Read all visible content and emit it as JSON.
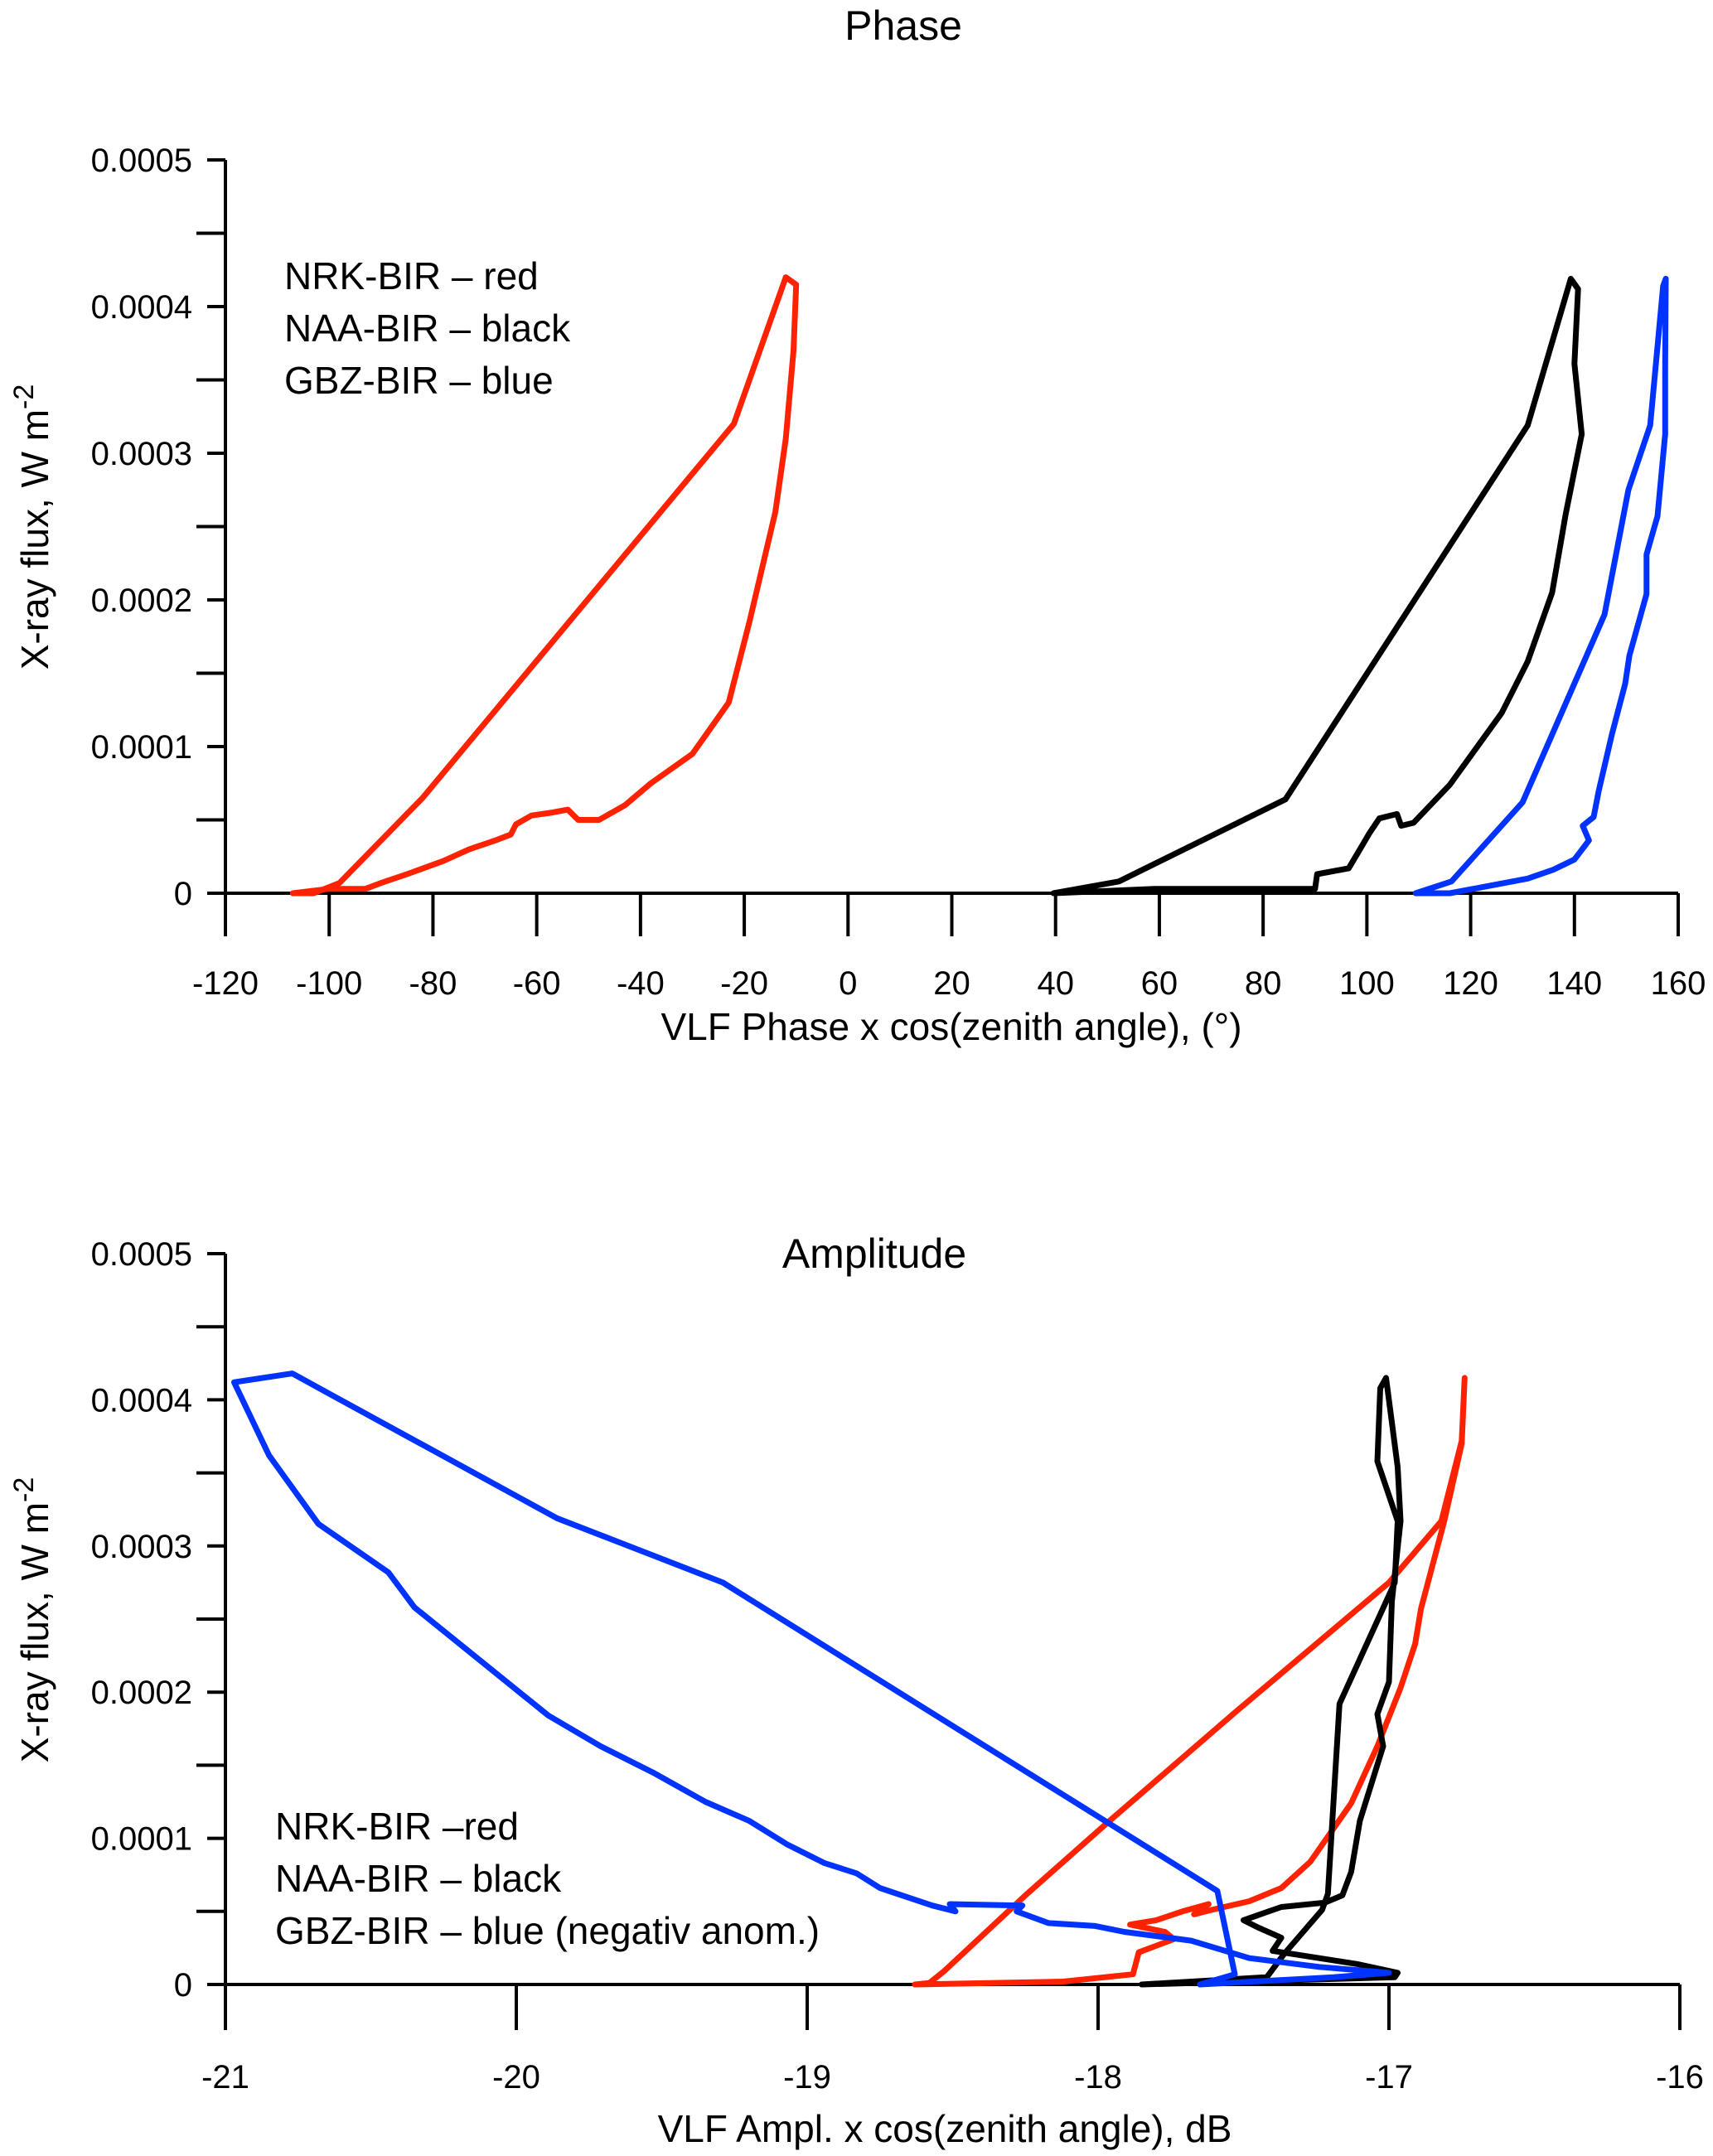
{
  "chart_data": [
    {
      "type": "line",
      "title": "Phase",
      "xlabel": "VLF Phase x cos(zenith angle), (°)",
      "ylabel": "X-ray flux, W m",
      "ylabel_superscript": "-2",
      "xlim": [
        -120,
        160
      ],
      "ylim": [
        0,
        0.0005
      ],
      "x_ticks": [
        -120,
        -100,
        -80,
        -60,
        -40,
        -20,
        0,
        20,
        40,
        60,
        80,
        100,
        120,
        140,
        160
      ],
      "x_tick_labels": [
        "-120",
        "-100",
        "-80",
        "-60",
        "-40",
        "-20",
        "0",
        "20",
        "40",
        "60",
        "80",
        "100",
        "120",
        "140",
        "160"
      ],
      "y_ticks": [
        0,
        0.0001,
        0.0002,
        0.0003,
        0.0004,
        0.0005
      ],
      "y_tick_labels": [
        "0",
        "0.0001",
        "0.0002",
        "0.0003",
        "0.0004",
        "0.0005"
      ],
      "y_minor_step": 5e-05,
      "grid": false,
      "legend_position": "top-left",
      "legend": [
        "NRK-BIR – red",
        "NAA-BIR – black",
        "GBZ-BIR – blue"
      ],
      "series": [
        {
          "name": "NRK-BIR",
          "color": "#ff2200",
          "points": [
            [
              -107,
              0
            ],
            [
              -103,
              0
            ],
            [
              -98,
              7e-06
            ],
            [
              -82,
              6.5e-05
            ],
            [
              -22,
              0.00032
            ],
            [
              -12,
              0.00042
            ],
            [
              -10,
              0.000415
            ],
            [
              -10.5,
              0.00037
            ],
            [
              -12,
              0.00031
            ],
            [
              -14,
              0.00026
            ],
            [
              -19,
              0.000185
            ],
            [
              -23,
              0.00013
            ],
            [
              -30,
              9.5e-05
            ],
            [
              -38,
              7.5e-05
            ],
            [
              -43,
              6e-05
            ],
            [
              -48,
              5e-05
            ],
            [
              -52,
              5e-05
            ],
            [
              -54,
              5.7e-05
            ],
            [
              -57,
              5.5e-05
            ],
            [
              -61,
              5.3e-05
            ],
            [
              -64,
              4.7e-05
            ],
            [
              -65,
              4e-05
            ],
            [
              -68,
              3.6e-05
            ],
            [
              -73,
              3e-05
            ],
            [
              -78,
              2.2e-05
            ],
            [
              -85,
              1.3e-05
            ],
            [
              -90,
              7e-06
            ],
            [
              -93,
              3e-06
            ],
            [
              -100,
              3e-06
            ],
            [
              -107,
              0
            ]
          ]
        },
        {
          "name": "NAA-BIR",
          "color": "#000000",
          "points": [
            [
              39.6,
              0
            ],
            [
              52.2,
              8e-06
            ],
            [
              84.3,
              6.4e-05
            ],
            [
              131,
              0.000319
            ],
            [
              139.3,
              0.000419
            ],
            [
              140.7,
              0.000412
            ],
            [
              140,
              0.000361
            ],
            [
              141.4,
              0.000313
            ],
            [
              138.3,
              0.000258
            ],
            [
              135.7,
              0.000205
            ],
            [
              131,
              0.000158
            ],
            [
              126,
              0.000123
            ],
            [
              116,
              7.4e-05
            ],
            [
              109,
              4.8e-05
            ],
            [
              106.6,
              4.6e-05
            ],
            [
              105.8,
              5.4e-05
            ],
            [
              102.4,
              5.1e-05
            ],
            [
              100.5,
              4.1e-05
            ],
            [
              98.5,
              2.9e-05
            ],
            [
              96.5,
              1.7e-05
            ],
            [
              90.4,
              1.3e-05
            ],
            [
              90,
              3e-06
            ],
            [
              59.1,
              3e-06
            ],
            [
              39.6,
              0
            ]
          ]
        },
        {
          "name": "GBZ-BIR",
          "color": "#0033ff",
          "points": [
            [
              109.4,
              0
            ],
            [
              116.3,
              8e-06
            ],
            [
              130,
              6.2e-05
            ],
            [
              145.8,
              0.00019
            ],
            [
              150.4,
              0.000275
            ],
            [
              154.6,
              0.000319
            ],
            [
              157.1,
              0.000414
            ],
            [
              157.6,
              0.000419
            ],
            [
              157.5,
              0.000361
            ],
            [
              157.5,
              0.000313
            ],
            [
              156,
              0.000257
            ],
            [
              153.9,
              0.000231
            ],
            [
              153.9,
              0.000204
            ],
            [
              150.6,
              0.000162
            ],
            [
              149.8,
              0.000143
            ],
            [
              147.2,
              0.000108
            ],
            [
              144.7,
              7e-05
            ],
            [
              143.7,
              5.2e-05
            ],
            [
              141.6,
              4.6e-05
            ],
            [
              142.8,
              3.6e-05
            ],
            [
              140,
              2.3e-05
            ],
            [
              135.9,
              1.6e-05
            ],
            [
              131,
              1e-05
            ],
            [
              123.5,
              5e-06
            ],
            [
              116,
              0
            ],
            [
              109.4,
              0
            ]
          ]
        }
      ]
    },
    {
      "type": "line",
      "title": "Amplitude",
      "xlabel": "VLF Ampl. x cos(zenith angle), dB",
      "ylabel": "X-ray flux, W m",
      "ylabel_superscript": "-2",
      "xlim": [
        -21,
        -16
      ],
      "ylim": [
        0,
        0.0005
      ],
      "x_ticks": [
        -21,
        -20,
        -19,
        -18,
        -17,
        -16
      ],
      "x_tick_labels": [
        "-21",
        "-20",
        "-19",
        "-18",
        "-17",
        "-16"
      ],
      "y_ticks": [
        0,
        0.0001,
        0.0002,
        0.0003,
        0.0004,
        0.0005
      ],
      "y_tick_labels": [
        "0",
        "0.0001",
        "0.0002",
        "0.0003",
        "0.0004",
        "0.0005"
      ],
      "y_minor_step": 5e-05,
      "grid": false,
      "legend_position": "bottom-left",
      "legend": [
        "NRK-BIR –red",
        "NAA-BIR – black",
        "GBZ-BIR – blue (negativ anom.)"
      ],
      "series": [
        {
          "name": "NRK-BIR",
          "color": "#ff2200",
          "points": [
            [
              -18.63,
              0
            ],
            [
              -18.58,
              1e-06
            ],
            [
              -18.53,
              9e-06
            ],
            [
              -18.25,
              6.1e-05
            ],
            [
              -17.96,
              0.000112
            ],
            [
              -17.53,
              0.000186
            ],
            [
              -17.0,
              0.000275
            ],
            [
              -16.82,
              0.000317
            ],
            [
              -16.75,
              0.000372
            ],
            [
              -16.74,
              0.000415
            ],
            [
              -16.75,
              0.00037
            ],
            [
              -16.81,
              0.000317
            ],
            [
              -16.89,
              0.000257
            ],
            [
              -16.91,
              0.000233
            ],
            [
              -16.96,
              0.000203
            ],
            [
              -17.04,
              0.000163
            ],
            [
              -17.13,
              0.000124
            ],
            [
              -17.27,
              8.4e-05
            ],
            [
              -17.37,
              6.6e-05
            ],
            [
              -17.48,
              5.7e-05
            ],
            [
              -17.61,
              5.1e-05
            ],
            [
              -17.67,
              4.8e-05
            ],
            [
              -17.62,
              5.5e-05
            ],
            [
              -17.71,
              5e-05
            ],
            [
              -17.8,
              4.4e-05
            ],
            [
              -17.89,
              4.1e-05
            ],
            [
              -17.77,
              3.6e-05
            ],
            [
              -17.74,
              3.1e-05
            ],
            [
              -17.86,
              2.2e-05
            ],
            [
              -17.88,
              7e-06
            ],
            [
              -18.12,
              2e-06
            ],
            [
              -18.63,
              0
            ]
          ]
        },
        {
          "name": "NAA-BIR",
          "color": "#000000",
          "points": [
            [
              -17.85,
              0
            ],
            [
              -17.42,
              5e-06
            ],
            [
              -17.36,
              2.1e-05
            ],
            [
              -17.23,
              5.1e-05
            ],
            [
              -17.21,
              6.2e-05
            ],
            [
              -17.17,
              0.000192
            ],
            [
              -16.98,
              0.000275
            ],
            [
              -16.97,
              0.000317
            ],
            [
              -17.04,
              0.000358
            ],
            [
              -17.03,
              0.000408
            ],
            [
              -17.01,
              0.000415
            ],
            [
              -16.97,
              0.000354
            ],
            [
              -16.96,
              0.000317
            ],
            [
              -16.99,
              0.000262
            ],
            [
              -17.0,
              0.000207
            ],
            [
              -17.04,
              0.000185
            ],
            [
              -17.02,
              0.000163
            ],
            [
              -17.1,
              0.000112
            ],
            [
              -17.13,
              7.7e-05
            ],
            [
              -17.16,
              6.1e-05
            ],
            [
              -17.22,
              5.6e-05
            ],
            [
              -17.37,
              5.3e-05
            ],
            [
              -17.5,
              4.4e-05
            ],
            [
              -17.45,
              3.9e-05
            ],
            [
              -17.37,
              3.2e-05
            ],
            [
              -17.4,
              2.3e-05
            ],
            [
              -17.24,
              1.8e-05
            ],
            [
              -17.11,
              1.4e-05
            ],
            [
              -16.97,
              8e-06
            ],
            [
              -16.98,
              5e-06
            ],
            [
              -17.85,
              0
            ]
          ]
        },
        {
          "name": "GBZ-BIR",
          "color": "#0033ff",
          "points": [
            [
              -17.65,
              0
            ],
            [
              -17.53,
              7e-06
            ],
            [
              -17.59,
              6.4e-05
            ],
            [
              -19.29,
              0.000275
            ],
            [
              -19.86,
              0.000319
            ],
            [
              -20.77,
              0.000418
            ],
            [
              -20.97,
              0.000412
            ],
            [
              -20.85,
              0.000362
            ],
            [
              -20.68,
              0.000315
            ],
            [
              -20.44,
              0.000282
            ],
            [
              -20.35,
              0.000258
            ],
            [
              -19.89,
              0.000184
            ],
            [
              -19.71,
              0.000163
            ],
            [
              -19.53,
              0.000145
            ],
            [
              -19.35,
              0.000125
            ],
            [
              -19.2,
              0.000112
            ],
            [
              -19.07,
              9.6e-05
            ],
            [
              -18.94,
              8.3e-05
            ],
            [
              -18.83,
              7.6e-05
            ],
            [
              -18.75,
              6.6e-05
            ],
            [
              -18.57,
              5.4e-05
            ],
            [
              -18.49,
              5e-05
            ],
            [
              -18.51,
              5.5e-05
            ],
            [
              -18.26,
              5.4e-05
            ],
            [
              -18.28,
              5e-05
            ],
            [
              -18.17,
              4.2e-05
            ],
            [
              -18.01,
              4e-05
            ],
            [
              -17.91,
              3.6e-05
            ],
            [
              -17.68,
              3e-05
            ],
            [
              -17.48,
              1.8e-05
            ],
            [
              -17.24,
              1.2e-05
            ],
            [
              -17.0,
              8e-06
            ],
            [
              -17.19,
              5e-06
            ],
            [
              -17.65,
              0
            ]
          ]
        }
      ]
    }
  ]
}
